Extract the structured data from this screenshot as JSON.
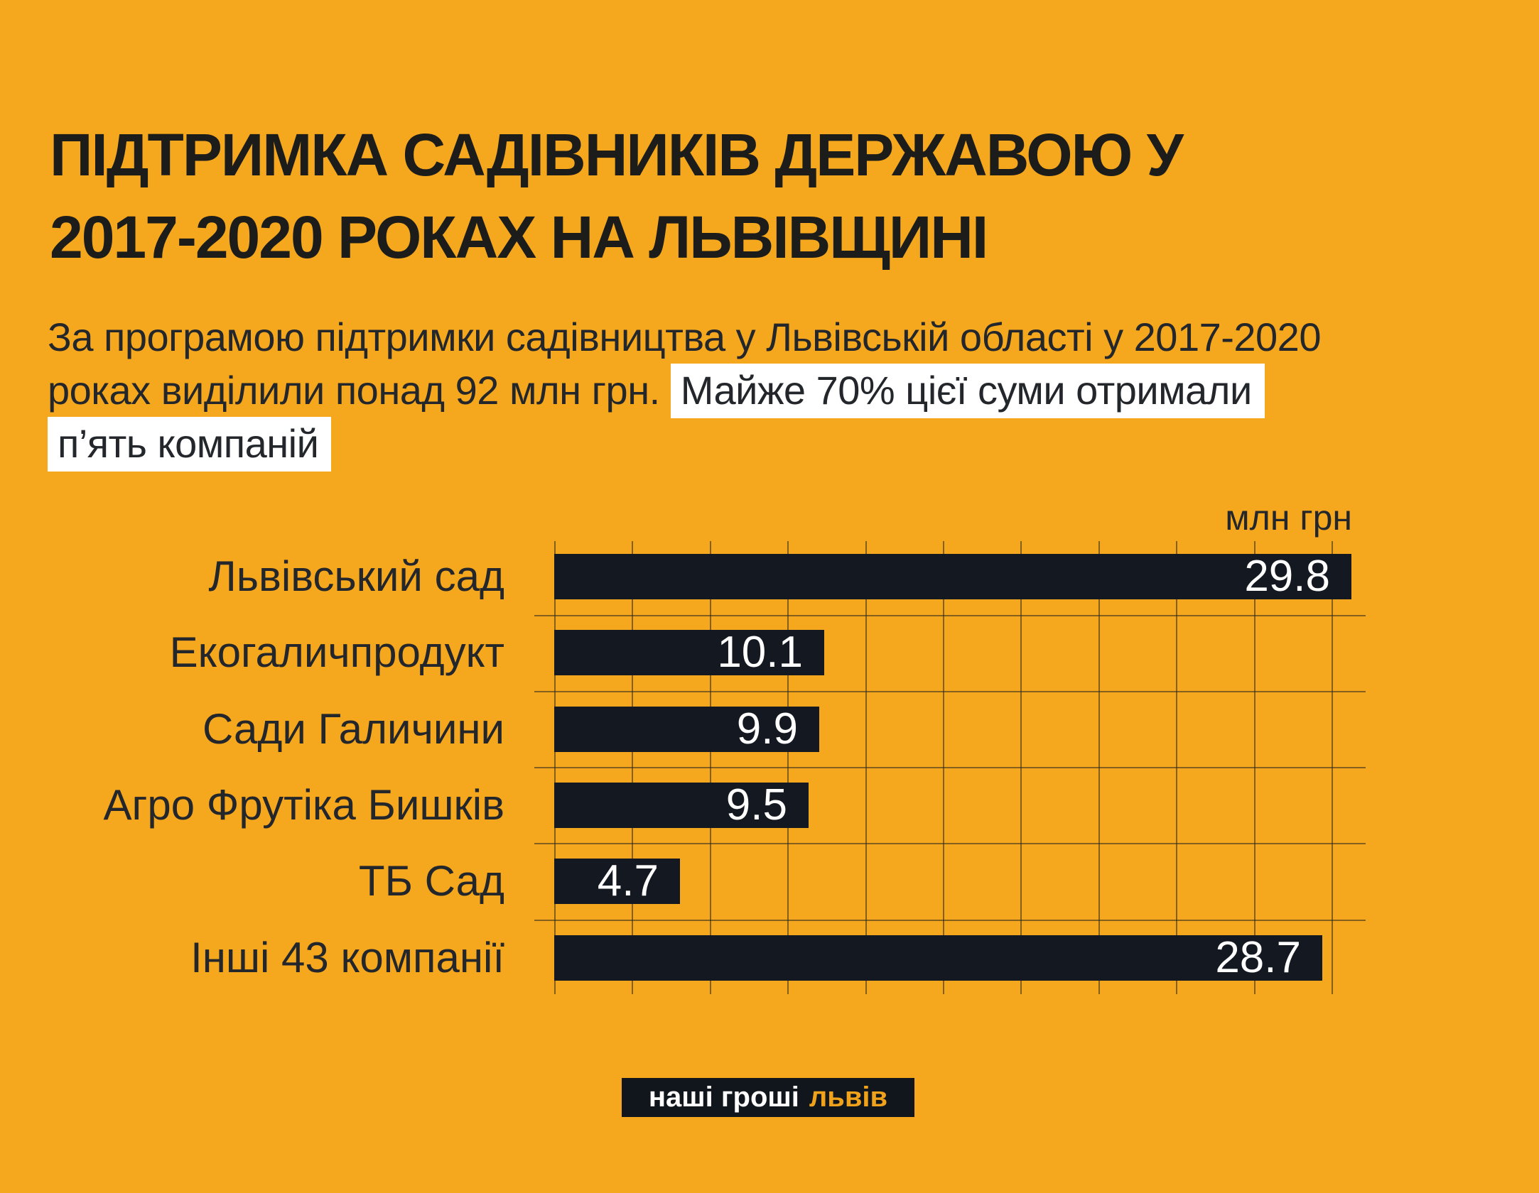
{
  "title": {
    "line1": "ПІДТРИМКА САДІВНИКІВ ДЕРЖАВОЮ У",
    "line2": "2017-2020 РОКАХ НА ЛЬВІВЩИНІ"
  },
  "subtitle": {
    "line1": "За програмою підтримки садівництва у Львівській області у 2017-2020",
    "line2_plain": "роках виділили понад 92 млн грн.",
    "line2_highlight": "Майже 70% цієї суми отримали",
    "line3_highlight": "п’ять компаній"
  },
  "chart_data": {
    "type": "bar",
    "orientation": "horizontal",
    "title": "Підтримка садівників державою у 2017-2020 роках на Львівщині",
    "unit_label": "млн грн",
    "categories": [
      "Львівський сад",
      "Екогаличпродукт",
      "Сади Галичини",
      "Агро Фрутіка Бишків",
      "ТБ Сад",
      "Інші 43 компанії"
    ],
    "values": [
      29.8,
      10.1,
      9.9,
      9.5,
      4.7,
      28.7
    ],
    "xlim": [
      0,
      29.8
    ],
    "grid": "on",
    "value_labels": "inside-end"
  },
  "footer": {
    "logo_part1": "наші гроші",
    "logo_part2": "львів"
  },
  "colors": {
    "background": "#F5A71E",
    "bar_fill": "#141821",
    "title_ink": "#1C1D1B",
    "text_ink": "#23262B",
    "grid_line": "rgba(40,38,30,0.55)",
    "highlight_bg": "#FFFFFF",
    "value_text": "#FFFFFF",
    "logo_bg": "#11151C",
    "logo_text": "#FFFFFF",
    "logo_accent": "#F0A21B"
  }
}
